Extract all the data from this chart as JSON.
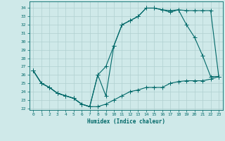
{
  "xlabel": "Humidex (Indice chaleur)",
  "bg_color": "#cfe9e9",
  "grid_color": "#b0d0d0",
  "line_color": "#006868",
  "xlim": [
    -0.5,
    23.5
  ],
  "ylim": [
    21.8,
    34.8
  ],
  "yticks": [
    22,
    23,
    24,
    25,
    26,
    27,
    28,
    29,
    30,
    31,
    32,
    33,
    34
  ],
  "xticks": [
    0,
    1,
    2,
    3,
    4,
    5,
    6,
    7,
    8,
    9,
    10,
    11,
    12,
    13,
    14,
    15,
    16,
    17,
    18,
    19,
    20,
    21,
    22,
    23
  ],
  "line1_x": [
    0,
    1,
    2,
    3,
    4,
    5,
    6,
    7,
    8,
    9,
    10,
    11,
    12,
    13,
    14,
    15,
    16,
    17,
    18,
    19,
    20,
    21,
    22,
    23
  ],
  "line1_y": [
    26.5,
    25.0,
    24.5,
    23.8,
    23.5,
    23.2,
    22.5,
    22.2,
    26.0,
    27.0,
    29.5,
    32.0,
    32.5,
    33.0,
    34.0,
    34.0,
    33.8,
    33.7,
    33.8,
    33.7,
    33.7,
    33.7,
    33.7,
    25.8
  ],
  "line2_x": [
    0,
    1,
    2,
    3,
    4,
    5,
    6,
    7,
    8,
    9,
    10,
    11,
    12,
    13,
    14,
    15,
    16,
    17,
    18,
    19,
    20,
    21,
    22,
    23
  ],
  "line2_y": [
    26.5,
    25.0,
    24.5,
    23.8,
    23.5,
    23.2,
    22.5,
    22.2,
    26.0,
    23.5,
    29.5,
    32.0,
    32.5,
    33.0,
    34.0,
    34.0,
    33.8,
    33.5,
    33.8,
    32.0,
    30.5,
    28.3,
    25.8,
    25.8
  ],
  "line3_x": [
    0,
    1,
    2,
    3,
    4,
    5,
    6,
    7,
    8,
    9,
    10,
    11,
    12,
    13,
    14,
    15,
    16,
    17,
    18,
    19,
    20,
    21,
    22,
    23
  ],
  "line3_y": [
    26.5,
    25.0,
    24.5,
    23.8,
    23.5,
    23.2,
    22.5,
    22.2,
    22.2,
    22.5,
    23.0,
    23.5,
    24.0,
    24.2,
    24.5,
    24.5,
    24.5,
    25.0,
    25.2,
    25.3,
    25.3,
    25.3,
    25.5,
    25.8
  ]
}
